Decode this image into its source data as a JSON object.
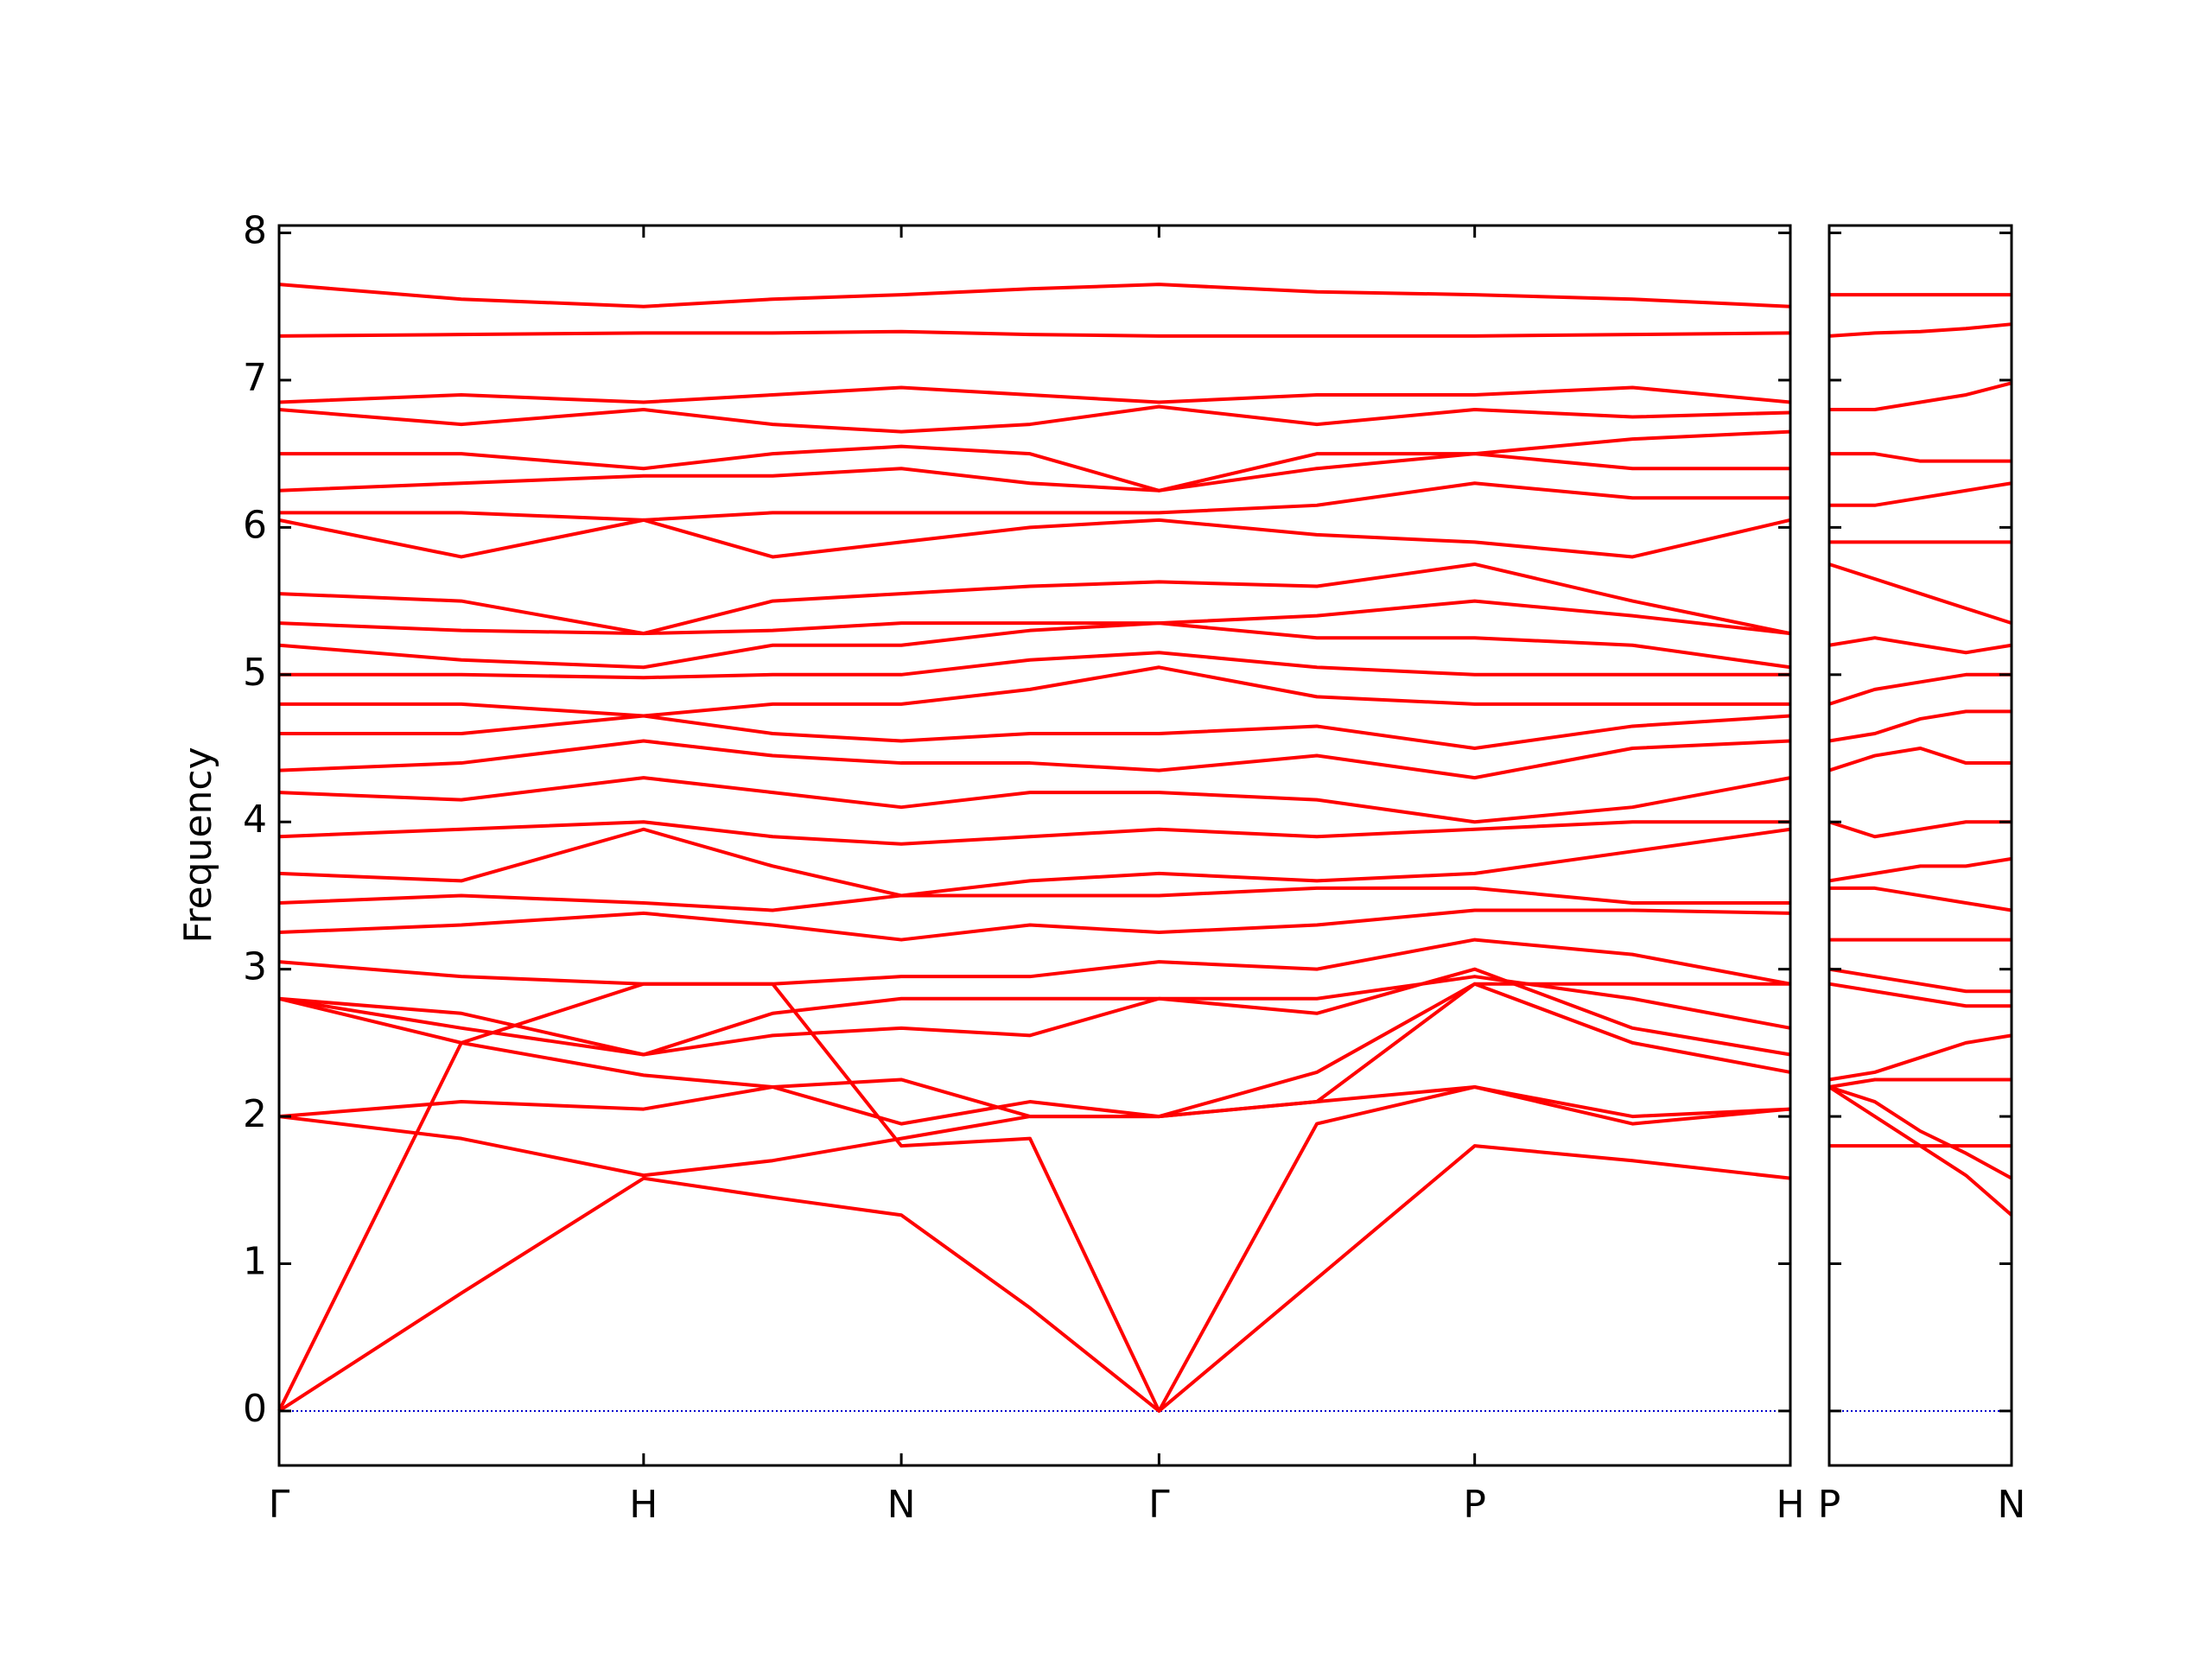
{
  "chart_data": [
    {
      "type": "line",
      "ylabel": "Frequency",
      "color": "#ff0000",
      "line_width": 4,
      "x": [
        0,
        0.5,
        1,
        1.354,
        1.707,
        2.06,
        2.414,
        2.847,
        3.28,
        3.713,
        4.146
      ],
      "xlim": [
        0,
        4.146
      ],
      "xticks": [
        {
          "value": 0,
          "label": "Γ"
        },
        {
          "value": 1,
          "label": "H"
        },
        {
          "value": 1.707,
          "label": "N"
        },
        {
          "value": 2.414,
          "label": "Γ"
        },
        {
          "value": 3.28,
          "label": "P"
        },
        {
          "value": 4.146,
          "label": "H"
        }
      ],
      "ylim": [
        -0.37,
        8.05
      ],
      "yticks": [
        0,
        1,
        2,
        3,
        4,
        5,
        6,
        7,
        8
      ],
      "show_ytick_labels": true,
      "hline": {
        "value": 0,
        "color": "#0000cd",
        "style": "dotted"
      },
      "series": [
        {
          "values": [
            0,
            0.8,
            1.58,
            1.45,
            1.33,
            0.7,
            0,
            0.9,
            1.8,
            1.7,
            1.58
          ]
        },
        {
          "values": [
            0,
            2.5,
            2.9,
            2.9,
            1.8,
            1.85,
            0,
            1.95,
            2.2,
            2.0,
            2.05
          ]
        },
        {
          "values": [
            2.0,
            2.1,
            2.05,
            2.2,
            1.95,
            2.1,
            2.0,
            2.1,
            2.2,
            1.95,
            2.05
          ]
        },
        {
          "values": [
            2.0,
            1.85,
            1.6,
            1.7,
            1.85,
            2.0,
            2.0,
            2.1,
            2.9,
            2.9,
            2.9
          ]
        },
        {
          "values": [
            2.8,
            2.5,
            2.28,
            2.2,
            2.25,
            2.0,
            2.0,
            2.3,
            2.9,
            2.5,
            2.3
          ]
        },
        {
          "values": [
            2.8,
            2.6,
            2.42,
            2.55,
            2.6,
            2.55,
            2.8,
            2.7,
            3.0,
            2.6,
            2.42
          ]
        },
        {
          "values": [
            2.8,
            2.7,
            2.42,
            2.7,
            2.8,
            2.8,
            2.8,
            2.8,
            2.95,
            2.8,
            2.6
          ]
        },
        {
          "values": [
            3.05,
            2.95,
            2.9,
            2.9,
            2.95,
            2.95,
            3.05,
            3.0,
            3.2,
            3.1,
            2.9
          ]
        },
        {
          "values": [
            3.25,
            3.3,
            3.38,
            3.3,
            3.2,
            3.3,
            3.25,
            3.3,
            3.4,
            3.4,
            3.38
          ]
        },
        {
          "values": [
            3.45,
            3.5,
            3.45,
            3.4,
            3.5,
            3.5,
            3.5,
            3.55,
            3.55,
            3.45,
            3.45
          ]
        },
        {
          "values": [
            3.65,
            3.6,
            3.95,
            3.7,
            3.5,
            3.6,
            3.65,
            3.6,
            3.65,
            3.8,
            3.95
          ]
        },
        {
          "values": [
            3.9,
            3.95,
            4.0,
            3.9,
            3.85,
            3.9,
            3.95,
            3.9,
            3.95,
            4.0,
            4.0
          ]
        },
        {
          "values": [
            4.2,
            4.15,
            4.3,
            4.2,
            4.1,
            4.2,
            4.2,
            4.15,
            4.0,
            4.1,
            4.3
          ]
        },
        {
          "values": [
            4.35,
            4.4,
            4.55,
            4.45,
            4.4,
            4.4,
            4.35,
            4.45,
            4.3,
            4.5,
            4.55
          ]
        },
        {
          "values": [
            4.6,
            4.6,
            4.72,
            4.6,
            4.55,
            4.6,
            4.6,
            4.65,
            4.5,
            4.65,
            4.72
          ]
        },
        {
          "values": [
            4.8,
            4.8,
            4.72,
            4.8,
            4.8,
            4.9,
            5.05,
            4.85,
            4.8,
            4.8,
            4.8
          ]
        },
        {
          "values": [
            5.0,
            5.0,
            4.98,
            5.0,
            5.0,
            5.1,
            5.15,
            5.05,
            5.0,
            5.0,
            5.0
          ]
        },
        {
          "values": [
            5.2,
            5.1,
            5.05,
            5.2,
            5.2,
            5.3,
            5.35,
            5.25,
            5.25,
            5.2,
            5.05
          ]
        },
        {
          "values": [
            5.35,
            5.3,
            5.28,
            5.3,
            5.35,
            5.35,
            5.35,
            5.4,
            5.5,
            5.4,
            5.28
          ]
        },
        {
          "values": [
            5.55,
            5.5,
            5.28,
            5.5,
            5.55,
            5.6,
            5.63,
            5.6,
            5.75,
            5.5,
            5.28
          ]
        },
        {
          "values": [
            6.05,
            5.8,
            6.05,
            5.8,
            5.9,
            6.0,
            6.05,
            5.95,
            5.9,
            5.8,
            6.05
          ]
        },
        {
          "values": [
            6.1,
            6.1,
            6.05,
            6.1,
            6.1,
            6.1,
            6.1,
            6.15,
            6.3,
            6.2,
            6.2
          ]
        },
        {
          "values": [
            6.25,
            6.3,
            6.35,
            6.35,
            6.4,
            6.3,
            6.25,
            6.4,
            6.5,
            6.4,
            6.4
          ]
        },
        {
          "values": [
            6.5,
            6.5,
            6.4,
            6.5,
            6.55,
            6.5,
            6.25,
            6.5,
            6.5,
            6.6,
            6.65
          ]
        },
        {
          "values": [
            6.8,
            6.7,
            6.8,
            6.7,
            6.65,
            6.7,
            6.82,
            6.7,
            6.8,
            6.75,
            6.78
          ]
        },
        {
          "values": [
            6.85,
            6.9,
            6.85,
            6.9,
            6.95,
            6.9,
            6.85,
            6.9,
            6.9,
            6.95,
            6.85
          ]
        },
        {
          "values": [
            7.3,
            7.31,
            7.32,
            7.32,
            7.33,
            7.31,
            7.3,
            7.3,
            7.3,
            7.31,
            7.32
          ]
        },
        {
          "values": [
            7.65,
            7.55,
            7.5,
            7.55,
            7.58,
            7.62,
            7.65,
            7.6,
            7.58,
            7.55,
            7.5
          ]
        }
      ]
    },
    {
      "type": "line",
      "color": "#ff0000",
      "line_width": 4,
      "x": [
        0,
        0.125,
        0.25,
        0.375,
        0.5
      ],
      "xlim": [
        0,
        0.5
      ],
      "xticks": [
        {
          "value": 0,
          "label": "P"
        },
        {
          "value": 0.5,
          "label": "N"
        }
      ],
      "ylim": [
        -0.37,
        8.05
      ],
      "yticks": [
        0,
        1,
        2,
        3,
        4,
        5,
        6,
        7,
        8
      ],
      "show_ytick_labels": false,
      "hline": {
        "value": 0,
        "color": "#0000cd",
        "style": "dotted"
      },
      "series": [
        {
          "values": [
            1.8,
            1.8,
            1.8,
            1.8,
            1.8
          ]
        },
        {
          "values": [
            2.2,
            2.0,
            1.8,
            1.6,
            1.33
          ]
        },
        {
          "values": [
            2.2,
            2.1,
            1.9,
            1.75,
            1.58
          ]
        },
        {
          "values": [
            2.2,
            2.25,
            2.25,
            2.25,
            2.25
          ]
        },
        {
          "values": [
            2.25,
            2.3,
            2.4,
            2.5,
            2.55
          ]
        },
        {
          "values": [
            2.9,
            2.85,
            2.8,
            2.75,
            2.75
          ]
        },
        {
          "values": [
            3.0,
            2.95,
            2.9,
            2.85,
            2.85
          ]
        },
        {
          "values": [
            3.2,
            3.2,
            3.2,
            3.2,
            3.2
          ]
        },
        {
          "values": [
            3.55,
            3.55,
            3.5,
            3.45,
            3.4
          ]
        },
        {
          "values": [
            3.6,
            3.65,
            3.7,
            3.7,
            3.75
          ]
        },
        {
          "values": [
            4.0,
            3.9,
            3.95,
            4.0,
            4.0
          ]
        },
        {
          "values": [
            4.35,
            4.45,
            4.5,
            4.4,
            4.4
          ]
        },
        {
          "values": [
            4.55,
            4.6,
            4.7,
            4.75,
            4.75
          ]
        },
        {
          "values": [
            4.8,
            4.9,
            4.95,
            5.0,
            5.0
          ]
        },
        {
          "values": [
            5.2,
            5.25,
            5.2,
            5.15,
            5.2
          ]
        },
        {
          "values": [
            5.75,
            5.65,
            5.55,
            5.45,
            5.35
          ]
        },
        {
          "values": [
            5.9,
            5.9,
            5.9,
            5.9,
            5.9
          ]
        },
        {
          "values": [
            6.15,
            6.15,
            6.2,
            6.25,
            6.3
          ]
        },
        {
          "values": [
            6.5,
            6.5,
            6.45,
            6.45,
            6.45
          ]
        },
        {
          "values": [
            6.8,
            6.8,
            6.85,
            6.9,
            6.98
          ]
        },
        {
          "values": [
            7.3,
            7.32,
            7.33,
            7.35,
            7.38
          ]
        },
        {
          "values": [
            7.58,
            7.58,
            7.58,
            7.58,
            7.58
          ]
        }
      ]
    }
  ]
}
